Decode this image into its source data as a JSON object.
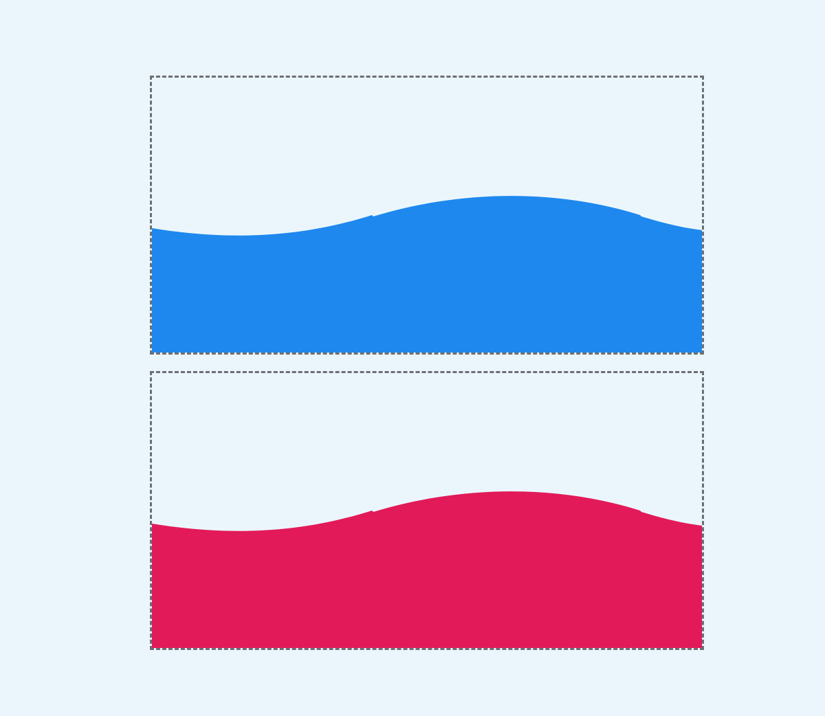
{
  "panels": [
    {
      "id": "top",
      "fill_color": "#1e88ee"
    },
    {
      "id": "bottom",
      "fill_color": "#e21a59"
    }
  ],
  "background_color": "#ebf6fc",
  "border_color": "#6b6f73"
}
